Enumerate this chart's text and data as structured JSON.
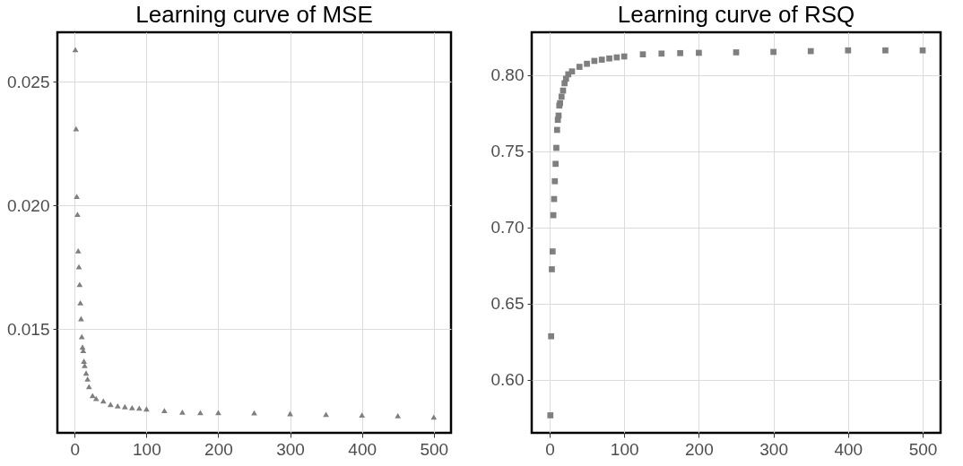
{
  "chart_data": [
    {
      "type": "scatter",
      "title": "Learning curve of MSE",
      "marker": "triangle",
      "grid": true,
      "xlim": [
        -24,
        524
      ],
      "xticks": [
        0,
        100,
        200,
        300,
        400,
        500
      ],
      "ylim": [
        0.0108,
        0.027
      ],
      "yticks": [
        0.015,
        {
          "value": 0.02,
          "label": "0.020"
        },
        0.025
      ],
      "series": [
        {
          "color": "#7f7f7f",
          "x": [
            1,
            2,
            3,
            4,
            5,
            6,
            7,
            8,
            9,
            10,
            11,
            12,
            13,
            14,
            16,
            18,
            20,
            25,
            30,
            40,
            50,
            60,
            70,
            80,
            90,
            100,
            125,
            150,
            175,
            200,
            250,
            300,
            350,
            400,
            450,
            500
          ],
          "values": [
            0.0263,
            0.0231,
            0.02036,
            0.01964,
            0.01816,
            0.01752,
            0.0168,
            0.01606,
            0.01542,
            0.01469,
            0.01427,
            0.01413,
            0.0137,
            0.01352,
            0.01322,
            0.01298,
            0.01267,
            0.01231,
            0.01219,
            0.01209,
            0.01195,
            0.01189,
            0.01186,
            0.01182,
            0.0118,
            0.01177,
            0.0117,
            0.01164,
            0.01162,
            0.01162,
            0.01161,
            0.01158,
            0.01155,
            0.01152,
            0.01149,
            0.01144
          ]
        }
      ]
    },
    {
      "type": "scatter",
      "title": "Learning curve of RSQ",
      "marker": "square",
      "grid": true,
      "xlim": [
        -24,
        524
      ],
      "xticks": [
        0,
        100,
        200,
        300,
        400,
        500
      ],
      "ylim": [
        0.565,
        0.828
      ],
      "yticks": [
        {
          "value": 0.6,
          "label": "0.60"
        },
        0.65,
        {
          "value": 0.7,
          "label": "0.70"
        },
        0.75,
        {
          "value": 0.8,
          "label": "0.80"
        }
      ],
      "series": [
        {
          "color": "#7f7f7f",
          "x": [
            1,
            2,
            3,
            4,
            5,
            6,
            7,
            8,
            9,
            10,
            11,
            12,
            13,
            14,
            16,
            18,
            20,
            22,
            25,
            30,
            40,
            50,
            60,
            70,
            80,
            90,
            100,
            125,
            150,
            175,
            200,
            250,
            300,
            350,
            400,
            450,
            500
          ],
          "values": [
            0.5765,
            0.6284,
            0.6724,
            0.6841,
            0.7079,
            0.7185,
            0.7302,
            0.7416,
            0.7521,
            0.7639,
            0.7705,
            0.7733,
            0.7799,
            0.7815,
            0.7857,
            0.7897,
            0.7945,
            0.7975,
            0.8004,
            0.8023,
            0.8053,
            0.8073,
            0.8092,
            0.81,
            0.8108,
            0.8115,
            0.8121,
            0.8135,
            0.814,
            0.8143,
            0.8145,
            0.8148,
            0.8151,
            0.8156,
            0.8161,
            0.8161,
            0.8161
          ]
        }
      ]
    }
  ]
}
